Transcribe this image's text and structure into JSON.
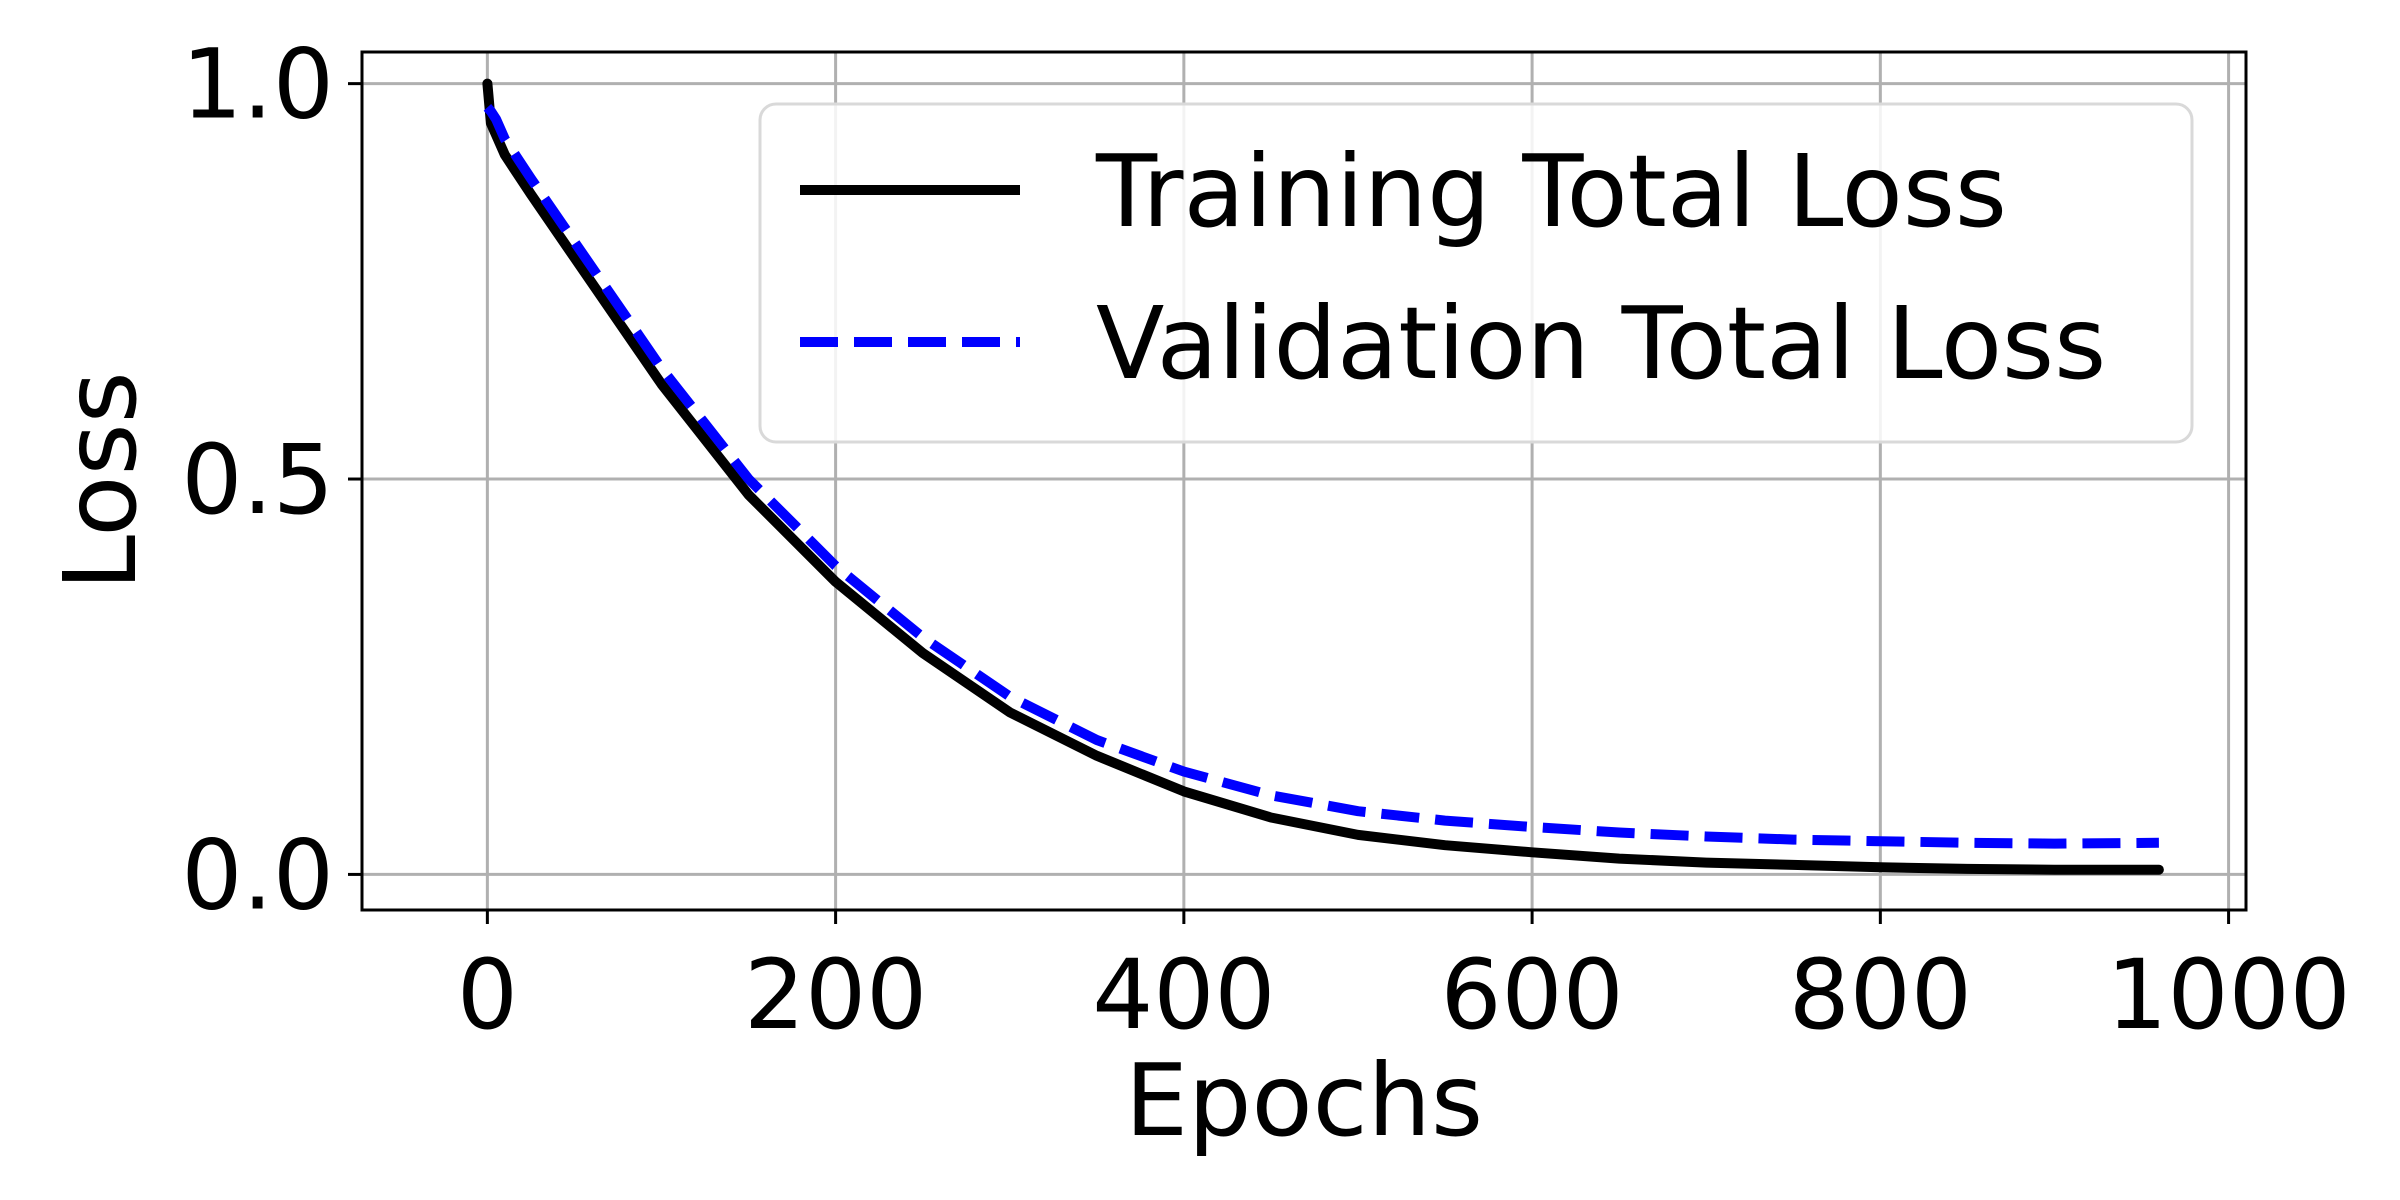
{
  "chart_data": {
    "type": "line",
    "title": "",
    "xlabel": "Epochs",
    "ylabel": "Loss",
    "xlim": [
      -72,
      1010
    ],
    "ylim": [
      -0.045,
      1.04
    ],
    "x_ticks": [
      0,
      200,
      400,
      600,
      800,
      1000
    ],
    "x_tick_labels": [
      "0",
      "200",
      "400",
      "600",
      "800",
      "1000"
    ],
    "y_ticks": [
      0.0,
      0.5,
      1.0
    ],
    "y_tick_labels": [
      "0.0",
      "0.5",
      "1.0"
    ],
    "grid": true,
    "legend_position": "top-right",
    "x": [
      0,
      2,
      5,
      10,
      25,
      50,
      75,
      100,
      150,
      200,
      250,
      300,
      350,
      400,
      450,
      500,
      550,
      600,
      650,
      700,
      750,
      800,
      850,
      900,
      960
    ],
    "series": [
      {
        "name": "Training Total Loss",
        "color": "#000000",
        "line_style": "solid",
        "values": [
          1.0,
          0.95,
          0.935,
          0.91,
          0.86,
          0.78,
          0.7,
          0.62,
          0.48,
          0.37,
          0.28,
          0.205,
          0.15,
          0.105,
          0.072,
          0.05,
          0.037,
          0.028,
          0.02,
          0.015,
          0.012,
          0.009,
          0.007,
          0.006,
          0.006
        ]
      },
      {
        "name": "Validation Total Loss",
        "color": "#0000ff",
        "line_style": "dashed",
        "values": [
          0.97,
          0.965,
          0.955,
          0.93,
          0.88,
          0.8,
          0.72,
          0.64,
          0.5,
          0.39,
          0.3,
          0.225,
          0.17,
          0.13,
          0.1,
          0.08,
          0.068,
          0.06,
          0.053,
          0.048,
          0.044,
          0.042,
          0.04,
          0.039,
          0.04
        ]
      }
    ]
  }
}
